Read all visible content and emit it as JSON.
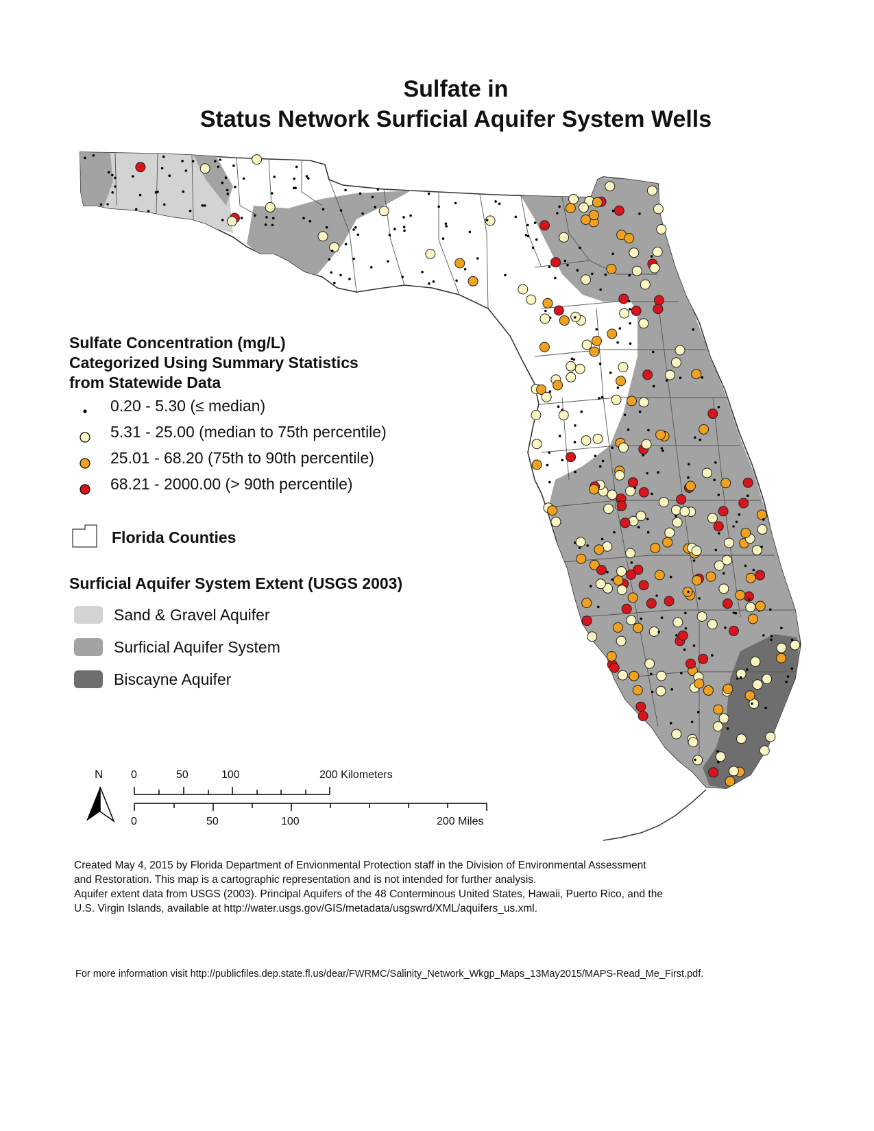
{
  "title": {
    "line1": "Sulfate in",
    "line2": "Status Network Surficial Aquifer System Wells"
  },
  "legend": {
    "heading": [
      "Sulfate Concentration (mg/L)",
      "Categorized Using Summary Statistics",
      "from Statewide Data"
    ],
    "classes": [
      {
        "label": "0.20 - 5.30 (≤ median)",
        "color": "#000000",
        "symbol": "small-dot"
      },
      {
        "label": "5.31 - 25.00 (median to 75th percentile)",
        "color": "#fbf6c2",
        "symbol": "circle"
      },
      {
        "label": "25.01 - 68.20 (75th to 90th percentile)",
        "color": "#f0a21f",
        "symbol": "circle"
      },
      {
        "label": "68.21 - 2000.00 (> 90th percentile)",
        "color": "#d8141c",
        "symbol": "circle"
      }
    ],
    "counties_label": "Florida Counties",
    "aquifer_heading": "Surficial Aquifer System Extent (USGS 2003)",
    "aquifers": [
      {
        "label": "Sand & Gravel Aquifer",
        "color": "#d3d3d3"
      },
      {
        "label": "Surficial Aquifer System",
        "color": "#a3a3a3"
      },
      {
        "label": "Biscayne Aquifer",
        "color": "#6e6e6e"
      }
    ]
  },
  "north_arrow": {
    "label": "N"
  },
  "scale_bar": {
    "km_ticks": [
      "0",
      "50",
      "100"
    ],
    "km_end": "200 Kilometers",
    "mi_ticks": [
      "0",
      "50",
      "100"
    ],
    "mi_end": "200 Miles"
  },
  "footnote": {
    "line1": "Created May 4, 2015 by Florida Department of Envionmental Protection staff in the Division of Environmental Assessment",
    "line2": "and Restoration.  This map is a cartographic representation and is not intended for further analysis.",
    "line3": "Aquifer extent data from USGS (2003). Principal Aquifers of the 48 Conterminous United States, Hawaii, Puerto Rico, and the",
    "line4": "U.S. Virgin Islands, available at http://water.usgs.gov/GIS/metadata/usgswrd/XML/aquifers_us.xml."
  },
  "more_info": "For more information visit http://publicfiles.dep.state.fl.us/dear/FWRMC/Salinity_Network_Wkgp_Maps_13May2015/MAPS-Read_Me_First.pdf."
}
